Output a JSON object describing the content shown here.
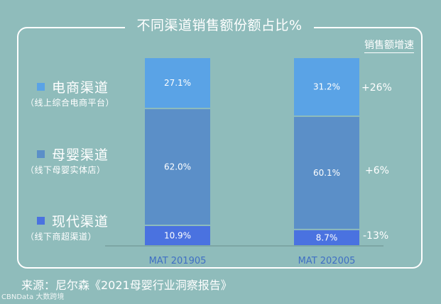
{
  "title": "不同渠道销售额份额占比%",
  "growth_header": "销售额增速",
  "legend": [
    {
      "name": "电商渠道",
      "sub": "（线上综合电商平台）",
      "color": "#5aa3e6"
    },
    {
      "name": "母婴渠道",
      "sub": "（线下母婴实体店）",
      "color": "#5b8fc8"
    },
    {
      "name": "现代渠道",
      "sub": "（线下商超渠道）",
      "color": "#4a72e0"
    }
  ],
  "growth": [
    "+26%",
    "+6%",
    "-13%"
  ],
  "source": "来源：尼尔森《2021母婴行业洞察报告》",
  "watermark": "CBNData 大数跨境",
  "colors": {
    "background": "#8fbcbb",
    "ecommerce": "#5aa3e6",
    "maternal": "#5b8fc8",
    "modern": "#4a72e0"
  },
  "chart_data": {
    "type": "bar",
    "stacked": true,
    "categories": [
      "MAT 201905",
      "MAT 202005"
    ],
    "series": [
      {
        "name": "现代渠道",
        "values": [
          10.9,
          8.7
        ],
        "labels": [
          "10.9%",
          "8.7%"
        ]
      },
      {
        "name": "母婴渠道",
        "values": [
          62.0,
          60.1
        ],
        "labels": [
          "62.0%",
          "60.1%"
        ]
      },
      {
        "name": "电商渠道",
        "values": [
          27.1,
          31.2
        ],
        "labels": [
          "27.1%",
          "31.2%"
        ]
      }
    ],
    "ylim": [
      0,
      100
    ]
  }
}
